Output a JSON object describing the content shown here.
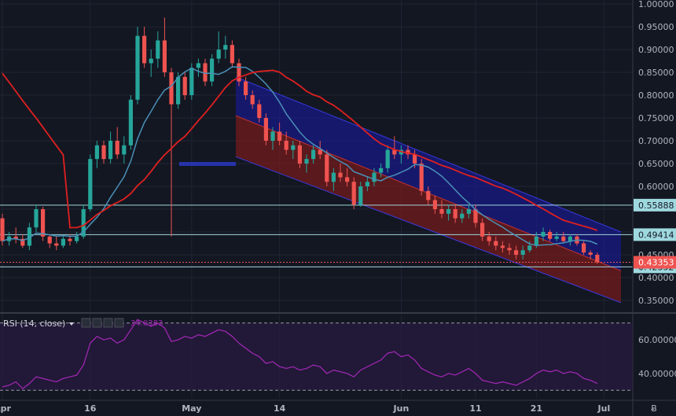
{
  "chart_data": {
    "type": "candlestick",
    "colors": {
      "background": "#131722",
      "up": "#26a69a",
      "down": "#ef5350",
      "ma_fast": "#4a90b8",
      "ma_slow": "#e02020",
      "channel_upper_fill": "#1a1aa8",
      "channel_lower_fill": "#8b1a1a",
      "hline": "#9fd9e0",
      "rsi": "#9c27b0",
      "price_tag": "#ef5350"
    },
    "price_axis": {
      "min": 0.3,
      "max": 1.0,
      "ticks": [
        "1.00000",
        "0.95000",
        "0.90000",
        "0.85000",
        "0.80000",
        "0.75000",
        "0.70000",
        "0.65000",
        "0.60000",
        "0.55000",
        "0.50000",
        "0.45000",
        "0.40000",
        "0.35000"
      ]
    },
    "x_axis": {
      "ticks": [
        {
          "label": "Apr",
          "bar": 0
        },
        {
          "label": "16",
          "bar": 13
        },
        {
          "label": "May",
          "bar": 28
        },
        {
          "label": "14",
          "bar": 41
        },
        {
          "label": "Jun",
          "bar": 59
        },
        {
          "label": "11",
          "bar": 70
        },
        {
          "label": "21",
          "bar": 79
        },
        {
          "label": "Jul",
          "bar": 89
        }
      ]
    },
    "horizontal_levels": [
      {
        "value": 0.55888,
        "label": "0.55888"
      },
      {
        "value": 0.49414,
        "label": "0.49414"
      },
      {
        "value": 0.42352,
        "label": "0.42352"
      }
    ],
    "current_price": {
      "value": 0.43353,
      "label": "0.43353"
    },
    "channel": {
      "start_bar": 35,
      "end_bar": 97,
      "upper_start": 0.84,
      "upper_end": 0.5,
      "mid_start": 0.755,
      "mid_end": 0.415,
      "lower_start": 0.665,
      "lower_end": 0.345
    },
    "ohlc": [
      [
        0.53,
        0.54,
        0.47,
        0.48
      ],
      [
        0.48,
        0.5,
        0.47,
        0.49
      ],
      [
        0.49,
        0.51,
        0.475,
        0.485
      ],
      [
        0.485,
        0.495,
        0.465,
        0.47
      ],
      [
        0.47,
        0.52,
        0.46,
        0.51
      ],
      [
        0.51,
        0.56,
        0.5,
        0.55
      ],
      [
        0.55,
        0.555,
        0.48,
        0.49
      ],
      [
        0.49,
        0.495,
        0.465,
        0.475
      ],
      [
        0.475,
        0.49,
        0.46,
        0.47
      ],
      [
        0.47,
        0.49,
        0.465,
        0.485
      ],
      [
        0.485,
        0.495,
        0.47,
        0.48
      ],
      [
        0.48,
        0.5,
        0.475,
        0.49
      ],
      [
        0.49,
        0.56,
        0.485,
        0.55
      ],
      [
        0.55,
        0.67,
        0.545,
        0.66
      ],
      [
        0.66,
        0.7,
        0.64,
        0.69
      ],
      [
        0.69,
        0.7,
        0.65,
        0.66
      ],
      [
        0.66,
        0.72,
        0.65,
        0.7
      ],
      [
        0.7,
        0.73,
        0.66,
        0.67
      ],
      [
        0.67,
        0.71,
        0.65,
        0.69
      ],
      [
        0.69,
        0.8,
        0.68,
        0.79
      ],
      [
        0.79,
        0.95,
        0.78,
        0.93
      ],
      [
        0.93,
        0.95,
        0.86,
        0.87
      ],
      [
        0.87,
        0.9,
        0.84,
        0.88
      ],
      [
        0.88,
        0.94,
        0.86,
        0.92
      ],
      [
        0.92,
        0.97,
        0.84,
        0.85
      ],
      [
        0.85,
        0.86,
        0.49,
        0.78
      ],
      [
        0.78,
        0.85,
        0.77,
        0.84
      ],
      [
        0.84,
        0.85,
        0.79,
        0.8
      ],
      [
        0.8,
        0.87,
        0.79,
        0.86
      ],
      [
        0.86,
        0.88,
        0.84,
        0.87
      ],
      [
        0.87,
        0.88,
        0.82,
        0.83
      ],
      [
        0.83,
        0.89,
        0.82,
        0.88
      ],
      [
        0.88,
        0.94,
        0.87,
        0.9
      ],
      [
        0.9,
        0.93,
        0.88,
        0.91
      ],
      [
        0.91,
        0.92,
        0.86,
        0.87
      ],
      [
        0.87,
        0.88,
        0.82,
        0.83
      ],
      [
        0.83,
        0.84,
        0.79,
        0.8
      ],
      [
        0.8,
        0.81,
        0.77,
        0.78
      ],
      [
        0.78,
        0.79,
        0.74,
        0.75
      ],
      [
        0.75,
        0.76,
        0.69,
        0.7
      ],
      [
        0.7,
        0.73,
        0.68,
        0.72
      ],
      [
        0.72,
        0.74,
        0.69,
        0.7
      ],
      [
        0.7,
        0.72,
        0.67,
        0.68
      ],
      [
        0.68,
        0.7,
        0.66,
        0.69
      ],
      [
        0.69,
        0.7,
        0.64,
        0.65
      ],
      [
        0.65,
        0.67,
        0.63,
        0.66
      ],
      [
        0.66,
        0.69,
        0.65,
        0.68
      ],
      [
        0.68,
        0.7,
        0.66,
        0.67
      ],
      [
        0.67,
        0.68,
        0.6,
        0.61
      ],
      [
        0.61,
        0.64,
        0.59,
        0.63
      ],
      [
        0.63,
        0.65,
        0.61,
        0.62
      ],
      [
        0.62,
        0.64,
        0.6,
        0.61
      ],
      [
        0.61,
        0.62,
        0.55,
        0.56
      ],
      [
        0.56,
        0.61,
        0.555,
        0.6
      ],
      [
        0.6,
        0.62,
        0.59,
        0.61
      ],
      [
        0.61,
        0.64,
        0.6,
        0.63
      ],
      [
        0.63,
        0.65,
        0.62,
        0.64
      ],
      [
        0.64,
        0.69,
        0.63,
        0.68
      ],
      [
        0.68,
        0.71,
        0.66,
        0.67
      ],
      [
        0.67,
        0.69,
        0.65,
        0.68
      ],
      [
        0.68,
        0.69,
        0.66,
        0.67
      ],
      [
        0.67,
        0.68,
        0.64,
        0.65
      ],
      [
        0.65,
        0.66,
        0.58,
        0.59
      ],
      [
        0.59,
        0.6,
        0.56,
        0.57
      ],
      [
        0.57,
        0.58,
        0.54,
        0.55
      ],
      [
        0.55,
        0.57,
        0.53,
        0.54
      ],
      [
        0.54,
        0.56,
        0.525,
        0.55
      ],
      [
        0.55,
        0.56,
        0.52,
        0.53
      ],
      [
        0.53,
        0.55,
        0.52,
        0.54
      ],
      [
        0.54,
        0.56,
        0.53,
        0.55
      ],
      [
        0.55,
        0.56,
        0.51,
        0.52
      ],
      [
        0.52,
        0.53,
        0.48,
        0.49
      ],
      [
        0.49,
        0.5,
        0.47,
        0.48
      ],
      [
        0.48,
        0.49,
        0.46,
        0.47
      ],
      [
        0.47,
        0.48,
        0.455,
        0.465
      ],
      [
        0.465,
        0.475,
        0.45,
        0.46
      ],
      [
        0.46,
        0.47,
        0.44,
        0.45
      ],
      [
        0.45,
        0.47,
        0.44,
        0.46
      ],
      [
        0.46,
        0.48,
        0.455,
        0.47
      ],
      [
        0.47,
        0.5,
        0.465,
        0.49
      ],
      [
        0.49,
        0.51,
        0.48,
        0.5
      ],
      [
        0.5,
        0.505,
        0.48,
        0.485
      ],
      [
        0.485,
        0.5,
        0.48,
        0.49
      ],
      [
        0.49,
        0.5,
        0.475,
        0.48
      ],
      [
        0.48,
        0.495,
        0.47,
        0.49
      ],
      [
        0.49,
        0.495,
        0.47,
        0.475
      ],
      [
        0.475,
        0.48,
        0.45,
        0.455
      ],
      [
        0.455,
        0.46,
        0.44,
        0.45
      ],
      [
        0.45,
        0.455,
        0.43,
        0.434
      ]
    ],
    "rsi": {
      "label": "RSI (14, close)",
      "value_label": "34.0383",
      "upper": 70,
      "lower": 30,
      "min": 25,
      "max": 75,
      "ticks": [
        "60.00000",
        "40.00000"
      ],
      "values": [
        32,
        33,
        35,
        31,
        34,
        38,
        37,
        36,
        35,
        37,
        38,
        39,
        45,
        58,
        62,
        60,
        61,
        58,
        60,
        66,
        72,
        70,
        68,
        70,
        67,
        59,
        60,
        62,
        61,
        63,
        62,
        64,
        66,
        65,
        62,
        58,
        55,
        52,
        50,
        46,
        47,
        44,
        43,
        44,
        42,
        43,
        45,
        44,
        40,
        42,
        41,
        40,
        38,
        42,
        44,
        46,
        48,
        52,
        53,
        50,
        51,
        48,
        43,
        41,
        39,
        38,
        40,
        39,
        41,
        43,
        40,
        36,
        35,
        34,
        35,
        34,
        33,
        35,
        37,
        40,
        42,
        41,
        42,
        40,
        41,
        40,
        37,
        36,
        34
      ]
    }
  },
  "ui": {
    "currency_symbol": "Ƀ"
  }
}
